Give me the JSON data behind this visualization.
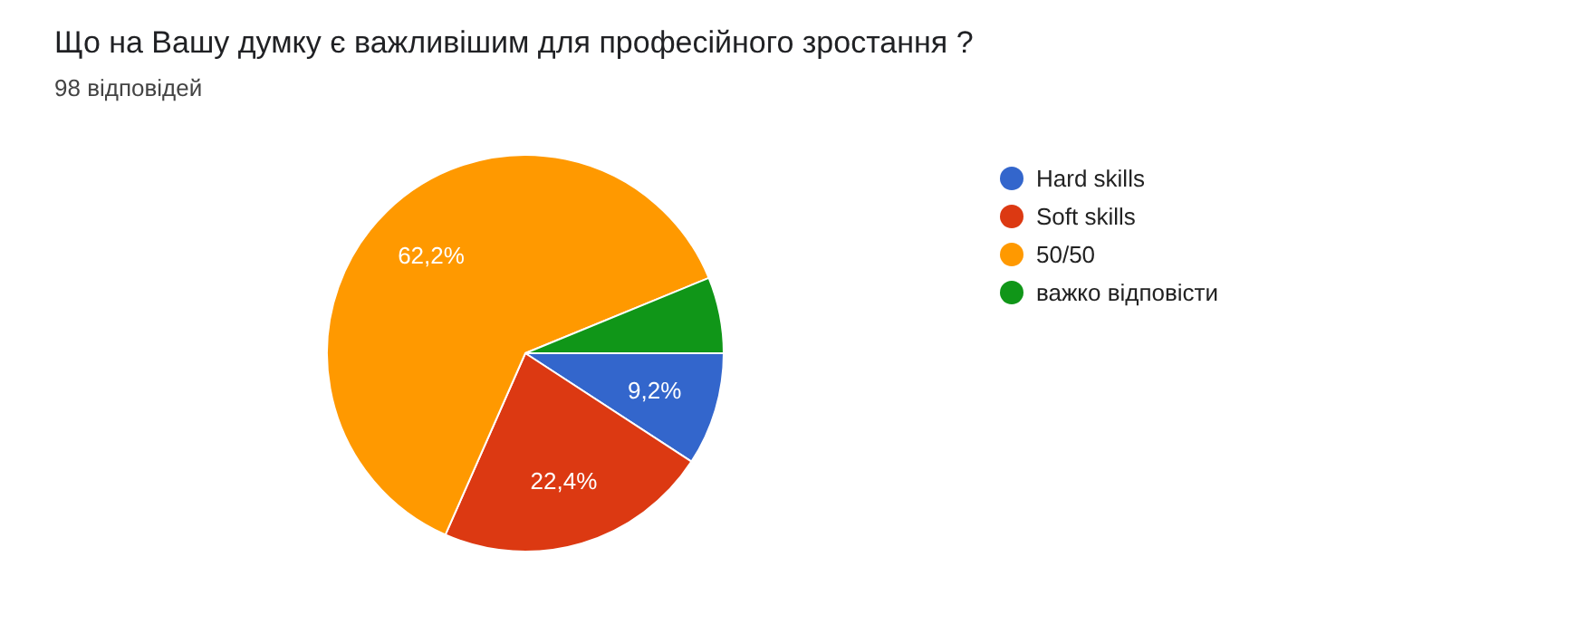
{
  "chart_data": {
    "type": "pie",
    "title": "Що на Вашу думку є важливішим для професійного зростання ?",
    "subtitle": "98 відповідей",
    "categories": [
      "Hard skills",
      "Soft skills",
      "50/50",
      "важко відповісти"
    ],
    "values": [
      9.2,
      22.4,
      62.2,
      6.2
    ],
    "colors": [
      "#3366cc",
      "#dc3912",
      "#ff9900",
      "#109618"
    ],
    "value_labels": [
      "9,2%",
      "22,4%",
      "62,2%",
      null
    ],
    "legend": "right"
  }
}
